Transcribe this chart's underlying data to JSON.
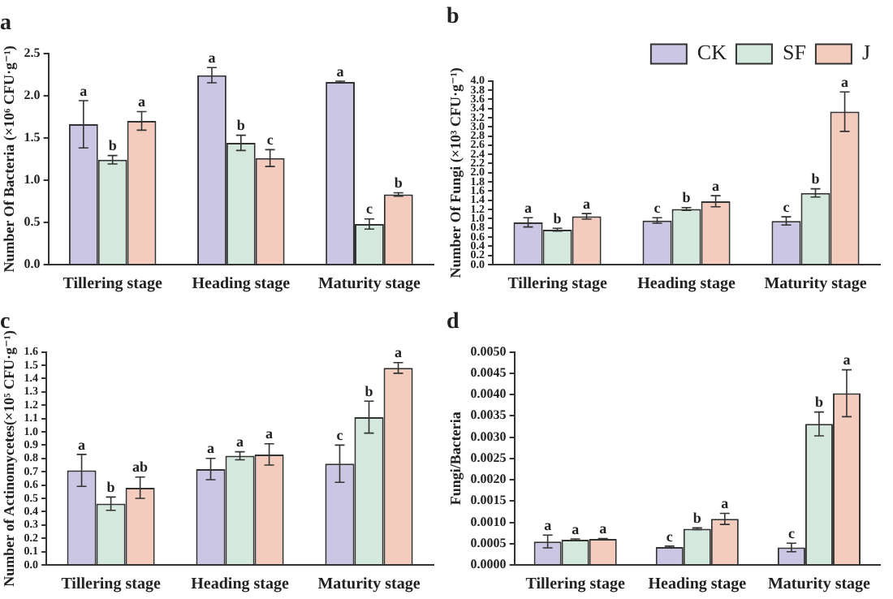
{
  "chart_data": [
    {
      "type": "bar",
      "title": "a",
      "ylabel": "Number Of Bacteria (×10⁶ CFU·g⁻¹)",
      "categories": [
        "Tillering stage",
        "Heading stage",
        "Maturity stage"
      ],
      "series": [
        {
          "color": "#cac6e4",
          "values": [
            1.66,
            2.24,
            2.16
          ],
          "errors": [
            0.28,
            0.09,
            0.01
          ]
        },
        {
          "color": "#d4e8dd",
          "values": [
            1.24,
            1.44,
            0.48
          ],
          "errors": [
            0.05,
            0.09,
            0.06
          ]
        },
        {
          "color": "#f4ccbe",
          "values": [
            1.7,
            1.26,
            0.83
          ],
          "errors": [
            0.11,
            0.1,
            0.02
          ]
        }
      ],
      "ylim": [
        0,
        2.5
      ],
      "yticks": [
        {
          "value": 0,
          "label": "0.0"
        },
        0.5,
        {
          "value": 1,
          "label": "1.0"
        },
        1.5,
        {
          "value": 2,
          "label": "2.0"
        },
        2.5
      ],
      "grid": false,
      "legend": false,
      "annotations": [
        "a",
        "b",
        "a",
        "a",
        "b",
        "c",
        "a",
        "c",
        "b"
      ]
    },
    {
      "type": "bar",
      "title": "b",
      "ylabel": "Number Of Fungi (×10³ CFU·g⁻¹)",
      "categories": [
        "Tillering stage",
        "Heading stage",
        "Maturity stage"
      ],
      "series": [
        {
          "name": "CK",
          "color": "#cac6e4",
          "values": [
            0.92,
            0.96,
            0.95
          ],
          "errors": [
            0.1,
            0.06,
            0.09
          ]
        },
        {
          "name": "SF",
          "color": "#d4e8dd",
          "values": [
            0.76,
            1.21,
            1.56
          ],
          "errors": [
            0.03,
            0.03,
            0.09
          ]
        },
        {
          "name": "J",
          "color": "#f4ccbe",
          "values": [
            1.05,
            1.38,
            3.33
          ],
          "errors": [
            0.06,
            0.12,
            0.43
          ]
        }
      ],
      "ylim": [
        0,
        4
      ],
      "yticks": [
        {
          "value": 0,
          "label": "0.0"
        },
        0.2,
        0.4,
        0.6,
        0.8,
        {
          "value": 1,
          "label": "1.0"
        },
        1.2,
        1.4,
        1.6,
        1.8,
        {
          "value": 2,
          "label": "2.0"
        },
        2.2,
        2.4,
        2.6,
        2.8,
        {
          "value": 3,
          "label": "3.0"
        },
        3.2,
        3.4,
        3.6,
        3.8,
        {
          "value": 4,
          "label": "4.0"
        }
      ],
      "grid": false,
      "legend": "top right",
      "annotations": [
        "a",
        "b",
        "a",
        "c",
        "b",
        "a",
        "c",
        "b",
        "a"
      ]
    },
    {
      "type": "bar",
      "title": "c",
      "ylabel": "Number of Actinomycetes(×10⁵ CFU·g⁻¹)",
      "categories": [
        "Tillering stage",
        "Heading stage",
        "Maturity stage"
      ],
      "series": [
        {
          "color": "#cac6e4",
          "values": [
            0.71,
            0.72,
            0.76
          ],
          "errors": [
            0.12,
            0.08,
            0.14
          ]
        },
        {
          "color": "#d4e8dd",
          "values": [
            0.46,
            0.82,
            1.11
          ],
          "errors": [
            0.05,
            0.03,
            0.12
          ]
        },
        {
          "color": "#f4ccbe",
          "values": [
            0.58,
            0.83,
            1.48
          ],
          "errors": [
            0.08,
            0.08,
            0.04
          ]
        }
      ],
      "ylim": [
        0,
        1.6
      ],
      "yticks": [
        {
          "value": 0,
          "label": "0.0"
        },
        0.1,
        0.2,
        0.3,
        0.4,
        0.5,
        0.6,
        0.7,
        0.8,
        0.9,
        {
          "value": 1,
          "label": "1.0"
        },
        1.1,
        1.2,
        1.3,
        1.4,
        1.5,
        1.6
      ],
      "grid": false,
      "legend": false,
      "annotations": [
        "a",
        "b",
        "ab",
        "a",
        "a",
        "a",
        "c",
        "b",
        "a"
      ]
    },
    {
      "type": "bar",
      "title": "d",
      "ylabel": "Fungi/Bacteria",
      "categories": [
        "Tillering stage",
        "Heading stage",
        "Maturity stage"
      ],
      "series": [
        {
          "color": "#cac6e4",
          "values": [
            0.00055,
            0.00042,
            0.00041
          ],
          "errors": [
            0.00015,
            2e-05,
            0.0001
          ]
        },
        {
          "color": "#d4e8dd",
          "values": [
            0.00059,
            0.00085,
            0.00331
          ],
          "errors": [
            2e-05,
            2e-05,
            0.00028
          ]
        },
        {
          "color": "#f4ccbe",
          "values": [
            0.00061,
            0.00108,
            0.00403
          ],
          "errors": [
            1e-05,
            0.00013,
            0.00055
          ]
        }
      ],
      "ylim": [
        0,
        0.005
      ],
      "yticks": [
        {
          "value": 0,
          "label": "0.0000"
        },
        {
          "value": 0.0005,
          "label": "0.0005"
        },
        {
          "value": 0.001,
          "label": "0.0010"
        },
        {
          "value": 0.0015,
          "label": "0.0015"
        },
        {
          "value": 0.002,
          "label": "0.0020"
        },
        {
          "value": 0.0025,
          "label": "0.0025"
        },
        {
          "value": 0.003,
          "label": "0.0030"
        },
        {
          "value": 0.0035,
          "label": "0.0035"
        },
        {
          "value": 0.004,
          "label": "0.0040"
        },
        {
          "value": 0.0045,
          "label": "0.0045"
        },
        {
          "value": 0.005,
          "label": "0.0050"
        }
      ],
      "grid": false,
      "legend": false,
      "annotations": [
        "a",
        "a",
        "a",
        "c",
        "b",
        "a",
        "c",
        "b",
        "a"
      ]
    }
  ]
}
